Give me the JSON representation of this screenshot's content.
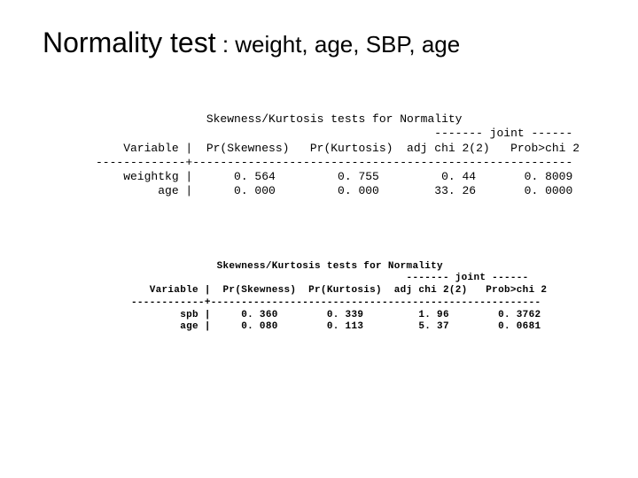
{
  "title_main": "Normality test",
  "title_sub": " : weight, age, SBP, age",
  "block1": {
    "heading": "                Skewness/Kurtosis tests for Normality",
    "joint": "                                                 ------- joint ------",
    "header": "    Variable |  Pr(Skewness)   Pr(Kurtosis)  adj chi 2(2)   Prob>chi 2",
    "rule": "-------------+-------------------------------------------------------",
    "row1": "    weightkg |      0. 564         0. 755         0. 44       0. 8009",
    "row2": "         age |      0. 000         0. 000        33. 26       0. 0000"
  },
  "block2": {
    "heading": "              Skewness/Kurtosis tests for Normality",
    "joint": "                                             ------- joint ------",
    "header": "   Variable |  Pr(Skewness)  Pr(Kurtosis)  adj chi 2(2)   Prob>chi 2",
    "rule": "------------+------------------------------------------------------",
    "row1": "        spb |     0. 360        0. 339         1. 96        0. 3762",
    "row2": "        age |     0. 080        0. 113         5. 37        0. 0681"
  }
}
